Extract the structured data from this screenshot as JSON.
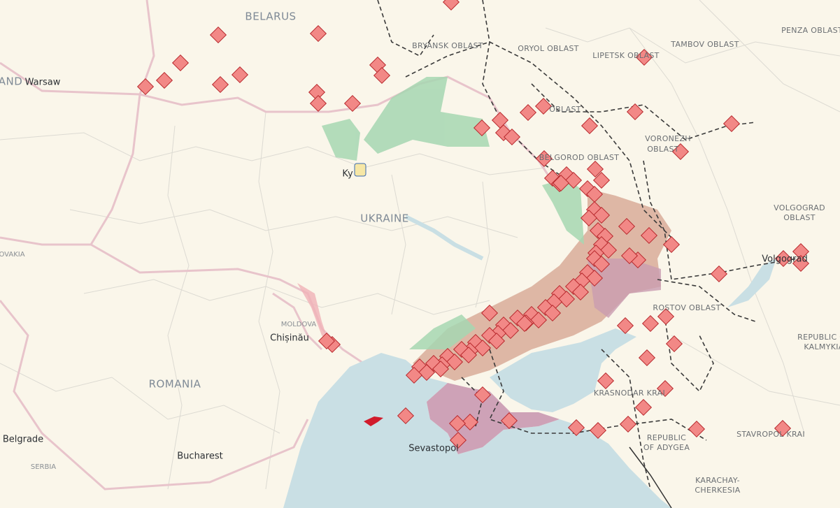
{
  "labels": [
    "BELARUS",
    "BRYANSK OBLAST",
    "ORYOL OBLAST",
    "LIPETSK OBLAST",
    "TAMBOV OBLAST",
    "PENZA OBLAST",
    "AND",
    "Warsaw",
    "OBLAST",
    "VORONEZH",
    "OBLAST",
    "BELGOROD OBLAST",
    "Ky",
    "UKRAINE",
    "VOLGOGRAD",
    "OBLAST",
    "Volgograd",
    "ROSTOV OBLAST",
    "REPUBLIC OF",
    "KALMYKIA",
    "MOLDOVA",
    "Chișinău",
    "ROMANIA",
    "OVAKIA",
    "Sevastopol",
    "KRASNODAR KRAI",
    "REPUBLIC",
    "OF ADYGEA",
    "STAVROPOL KRAI",
    "KARACHAY-",
    "CHERKESIA",
    "Belgrade",
    "SERBIA",
    "Bucharest"
  ]
}
